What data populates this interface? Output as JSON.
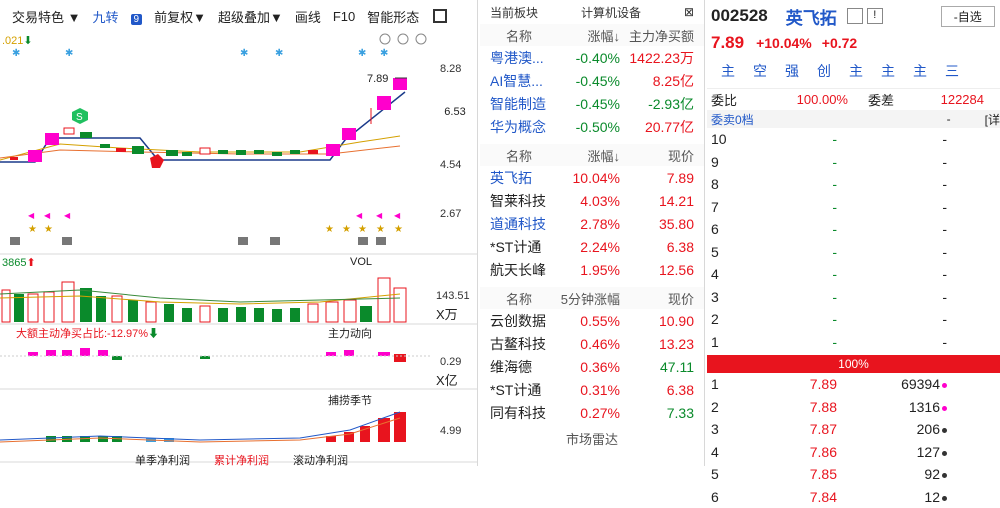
{
  "toolbar": {
    "items": [
      "交易特色 ▼",
      "九转",
      "前复权▼",
      "超级叠加▼",
      "画线",
      "F10",
      "智能形态"
    ],
    "badge": "9"
  },
  "chart": {
    "left_value": ".021",
    "price_axis": [
      "8.28",
      "6.53",
      "4.54",
      "2.67"
    ],
    "price_tag": "7.89",
    "vol_label": "3865",
    "vol_title": "VOL",
    "vol_axis": [
      "143.51",
      "X万"
    ],
    "flow_label": "大额主动净买占比:-12.97%",
    "flow_title": "主力动向",
    "flow_axis": [
      "0.29",
      "X亿"
    ],
    "catch_title": "捕捞季节",
    "catch_axis": [
      "4.99"
    ],
    "bottom_tabs": [
      "单季净利润",
      "累计净利润",
      "滚动净利润"
    ],
    "colors": {
      "up": "#e8141e",
      "down": "#0a8a2b",
      "magenta": "#ff00cc"
    }
  },
  "sector": {
    "header_left": "当前板块",
    "header_right": "计算机设备",
    "cols": [
      "名称",
      "涨幅↓",
      "主力净买额"
    ],
    "rows": [
      {
        "name": "粤港澳...",
        "chg": "-0.40%",
        "val": "1422.23万"
      },
      {
        "name": "AI智慧...",
        "chg": "-0.45%",
        "val": "8.25亿"
      },
      {
        "name": "智能制造",
        "chg": "-0.45%",
        "val": "-2.93亿"
      },
      {
        "name": "华为概念",
        "chg": "-0.50%",
        "val": "20.77亿"
      }
    ]
  },
  "stocks": {
    "cols": [
      "名称",
      "涨幅↓",
      "现价"
    ],
    "rows": [
      {
        "name": "英飞拓",
        "chg": "10.04%",
        "val": "7.89"
      },
      {
        "name": "智莱科技",
        "chg": "4.03%",
        "val": "14.21"
      },
      {
        "name": "道通科技",
        "chg": "2.78%",
        "val": "35.80"
      },
      {
        "name": "*ST计通",
        "chg": "2.24%",
        "val": "6.38"
      },
      {
        "name": "航天长峰",
        "chg": "1.95%",
        "val": "12.56"
      }
    ]
  },
  "five": {
    "cols": [
      "名称",
      "5分钟涨幅",
      "现价"
    ],
    "rows": [
      {
        "name": "云创数据",
        "chg": "0.55%",
        "val": "10.90"
      },
      {
        "name": "古鳌科技",
        "chg": "0.46%",
        "val": "13.23"
      },
      {
        "name": "维海德",
        "chg": "0.36%",
        "val": "47.11"
      },
      {
        "name": "*ST计通",
        "chg": "0.31%",
        "val": "6.38"
      },
      {
        "name": "同有科技",
        "chg": "0.27%",
        "val": "7.33"
      }
    ],
    "footer": "市场雷达"
  },
  "quote": {
    "code": "002528",
    "name": "英飞拓",
    "watch": "-自选",
    "price": "7.89",
    "pct": "+10.04%",
    "chg": "+0.72",
    "tabs": [
      "主",
      "空",
      "强",
      "创",
      "主",
      "主",
      "主",
      "三"
    ],
    "wb_label": "委比",
    "wb": "100.00%",
    "wc_label": "委差",
    "wc": "122284",
    "sell_title": "委卖0档",
    "dash": "-",
    "detail": "[详",
    "sell": [
      "10",
      "9",
      "8",
      "7",
      "6",
      "5",
      "4",
      "3",
      "2",
      "1"
    ],
    "ratio": "100%",
    "buy": [
      {
        "l": "1",
        "p": "7.89",
        "v": "69394",
        "c": "#ff00cc"
      },
      {
        "l": "2",
        "p": "7.88",
        "v": "1316",
        "c": "#ff00cc"
      },
      {
        "l": "3",
        "p": "7.87",
        "v": "206",
        "c": "#333"
      },
      {
        "l": "4",
        "p": "7.86",
        "v": "127",
        "c": "#333"
      },
      {
        "l": "5",
        "p": "7.85",
        "v": "92",
        "c": "#333"
      },
      {
        "l": "6",
        "p": "7.84",
        "v": "12",
        "c": "#333"
      }
    ]
  }
}
